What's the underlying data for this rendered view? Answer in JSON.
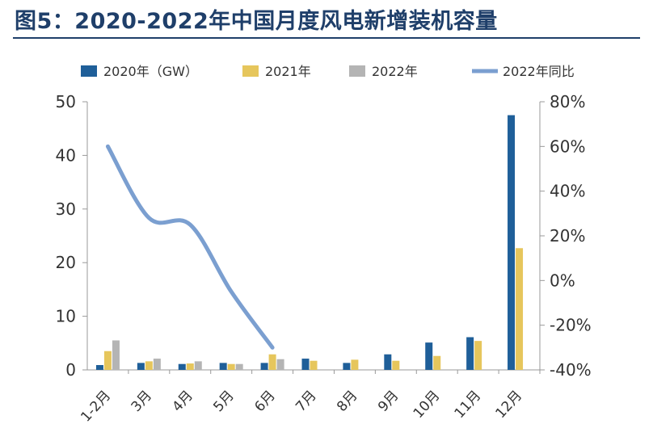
{
  "title": "图5：2020-2022年中国月度风电新增装机容量",
  "chart_data": {
    "type": "bar",
    "title": "图5：2020-2022年中国月度风电新增装机容量",
    "categories": [
      "1-2月",
      "3月",
      "4月",
      "5月",
      "6月",
      "7月",
      "8月",
      "9月",
      "10月",
      "11月",
      "12月"
    ],
    "series": [
      {
        "name": "2020年（GW）",
        "type": "bar",
        "axis": "left",
        "color": "#1f5f99",
        "values": [
          0.9,
          1.3,
          1.1,
          1.3,
          1.3,
          2.1,
          1.3,
          2.9,
          5.1,
          6.1,
          47.5
        ]
      },
      {
        "name": "2021年",
        "type": "bar",
        "axis": "left",
        "color": "#e6c65c",
        "values": [
          3.5,
          1.6,
          1.2,
          1.1,
          2.9,
          1.7,
          1.9,
          1.7,
          2.6,
          5.4,
          22.7
        ]
      },
      {
        "name": "2022年",
        "type": "bar",
        "axis": "left",
        "color": "#b4b4b4",
        "values": [
          5.5,
          2.1,
          1.6,
          1.1,
          2.0,
          null,
          null,
          null,
          null,
          null,
          null
        ]
      },
      {
        "name": "2022年同比",
        "type": "line",
        "axis": "right",
        "color": "#7b9fd0",
        "values": [
          60,
          28,
          25,
          -5,
          -30,
          null,
          null,
          null,
          null,
          null,
          null
        ]
      }
    ],
    "ylim": [
      0,
      50
    ],
    "yticks": [
      0,
      10,
      20,
      30,
      40,
      50
    ],
    "y2lim": [
      -40,
      80
    ],
    "y2ticks": [
      "-40%",
      "-20%",
      "0%",
      "20%",
      "40%",
      "60%",
      "80%"
    ],
    "legend": "top",
    "grid": false
  }
}
